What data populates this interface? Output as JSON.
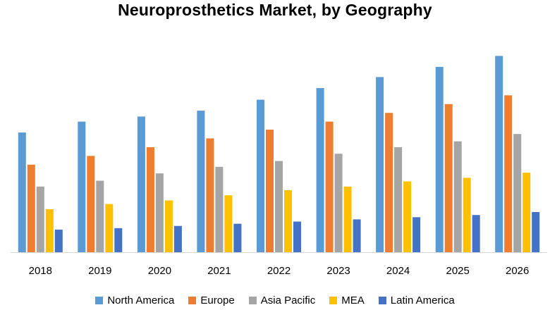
{
  "chart_data": {
    "type": "bar",
    "title": "Neuroprosthetics Market, by Geography",
    "xlabel": "",
    "ylabel": "",
    "ylim": [
      0,
      280
    ],
    "grid": false,
    "legend_position": "bottom",
    "categories": [
      "2018",
      "2019",
      "2020",
      "2021",
      "2022",
      "2023",
      "2024",
      "2025",
      "2026"
    ],
    "series": [
      {
        "name": "North America",
        "color": "#5B9BD5",
        "values": [
          164,
          179,
          186,
          194,
          209,
          225,
          240,
          254,
          269
        ]
      },
      {
        "name": "Europe",
        "color": "#ED7D31",
        "values": [
          120,
          132,
          144,
          156,
          168,
          179,
          191,
          203,
          215
        ]
      },
      {
        "name": "Asia Pacific",
        "color": "#A5A5A5",
        "values": [
          90,
          98,
          108,
          117,
          125,
          135,
          144,
          152,
          162
        ]
      },
      {
        "name": "MEA",
        "color": "#FFC000",
        "values": [
          59,
          66,
          71,
          78,
          85,
          90,
          97,
          102,
          109
        ]
      },
      {
        "name": "Latin America",
        "color": "#4472C4",
        "values": [
          31,
          33,
          36,
          39,
          42,
          45,
          48,
          51,
          55
        ]
      }
    ]
  }
}
